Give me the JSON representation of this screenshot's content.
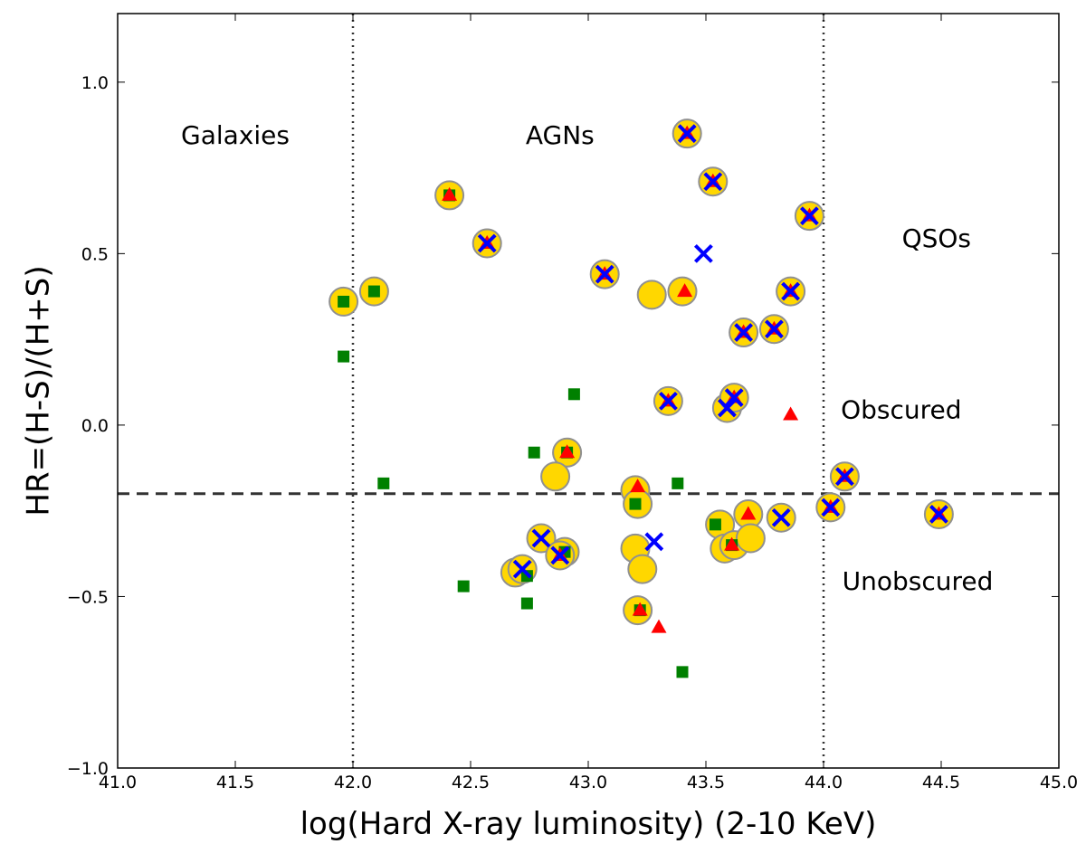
{
  "chart_data": {
    "type": "scatter",
    "xlabel": "log(Hard X-ray luminosity) (2-10 KeV)",
    "ylabel": "HR=(H-S)/(H+S)",
    "xlim": [
      41.0,
      45.0
    ],
    "ylim": [
      -1.0,
      1.2
    ],
    "xticks": [
      41.0,
      41.5,
      42.0,
      42.5,
      43.0,
      43.5,
      44.0,
      44.5,
      45.0
    ],
    "yticks": [
      -1.0,
      -0.5,
      0.0,
      0.5,
      1.0
    ],
    "xtick_labels": [
      "41.0",
      "41.5",
      "42.0",
      "42.5",
      "43.0",
      "43.5",
      "44.0",
      "44.5",
      "45.0"
    ],
    "ytick_labels": [
      "−1.0",
      "−0.5",
      "0.0",
      "0.5",
      "1.0"
    ],
    "grid": false,
    "reference_lines": [
      {
        "orientation": "vertical",
        "value": 42.0,
        "style": "dotted"
      },
      {
        "orientation": "vertical",
        "value": 44.0,
        "style": "dotted"
      },
      {
        "orientation": "horizontal",
        "value": -0.2,
        "style": "dashed"
      }
    ],
    "annotations": [
      {
        "text": "Galaxies",
        "x": 41.5,
        "y": 0.82
      },
      {
        "text": "AGNs",
        "x": 42.88,
        "y": 0.82
      },
      {
        "text": "QSOs",
        "x": 44.48,
        "y": 0.52
      },
      {
        "text": "Obscured",
        "x": 44.33,
        "y": 0.02
      },
      {
        "text": "Unobscured",
        "x": 44.4,
        "y": -0.48
      }
    ],
    "colors": {
      "circle_fill": "#FFD700",
      "circle_edge": "#909090",
      "square": "#008000",
      "triangle": "#FF0000",
      "cross": "#0000FF",
      "line": "#333333"
    },
    "series": [
      {
        "marker": "circle",
        "x": [
          41.96,
          42.09,
          42.41,
          42.57,
          43.07,
          43.27,
          43.4,
          43.42,
          43.53,
          43.94,
          43.66,
          43.79,
          43.86,
          43.34,
          43.59,
          43.62,
          42.91,
          42.86,
          43.2,
          43.21,
          43.56,
          43.58,
          43.62,
          43.68,
          43.69,
          43.82,
          44.03,
          44.09,
          44.49,
          42.69,
          42.72,
          42.8,
          42.9,
          42.88,
          43.2,
          43.23,
          43.21
        ],
        "y": [
          0.36,
          0.39,
          0.67,
          0.53,
          0.44,
          0.38,
          0.39,
          0.85,
          0.71,
          0.61,
          0.27,
          0.28,
          0.39,
          0.07,
          0.05,
          0.08,
          -0.08,
          -0.15,
          -0.19,
          -0.23,
          -0.29,
          -0.36,
          -0.35,
          -0.26,
          -0.33,
          -0.27,
          -0.24,
          -0.15,
          -0.26,
          -0.43,
          -0.42,
          -0.33,
          -0.37,
          -0.38,
          -0.36,
          -0.42,
          -0.54
        ]
      },
      {
        "marker": "square",
        "x": [
          41.96,
          41.96,
          42.09,
          42.41,
          42.13,
          42.47,
          42.74,
          42.74,
          42.77,
          42.9,
          42.91,
          42.94,
          43.2,
          43.22,
          43.38,
          43.4,
          43.54,
          43.61
        ],
        "y": [
          0.36,
          0.2,
          0.39,
          0.67,
          -0.17,
          -0.47,
          -0.52,
          -0.44,
          -0.08,
          -0.37,
          -0.08,
          0.09,
          -0.23,
          -0.54,
          -0.17,
          -0.72,
          -0.29,
          -0.35
        ]
      },
      {
        "marker": "triangle",
        "x": [
          42.41,
          42.57,
          43.07,
          43.41,
          43.42,
          43.53,
          43.94,
          43.66,
          43.79,
          43.86,
          43.86,
          43.34,
          43.62,
          42.91,
          43.21,
          43.68,
          43.61,
          44.03,
          44.09,
          44.49,
          42.88,
          43.22,
          43.3
        ],
        "y": [
          0.67,
          0.53,
          0.44,
          0.39,
          0.85,
          0.71,
          0.61,
          0.27,
          0.28,
          0.39,
          0.03,
          0.07,
          0.08,
          -0.08,
          -0.18,
          -0.26,
          -0.35,
          -0.24,
          -0.15,
          -0.26,
          -0.38,
          -0.54,
          -0.59
        ]
      },
      {
        "marker": "cross",
        "x": [
          42.57,
          43.07,
          43.42,
          43.53,
          43.94,
          43.49,
          43.66,
          43.79,
          43.86,
          43.34,
          43.59,
          43.62,
          42.72,
          42.8,
          42.88,
          43.28,
          43.82,
          44.03,
          44.09,
          44.49
        ],
        "y": [
          0.53,
          0.44,
          0.85,
          0.71,
          0.61,
          0.5,
          0.27,
          0.28,
          0.39,
          0.07,
          0.05,
          0.08,
          -0.42,
          -0.33,
          -0.38,
          -0.34,
          -0.27,
          -0.24,
          -0.15,
          -0.26
        ]
      }
    ]
  }
}
